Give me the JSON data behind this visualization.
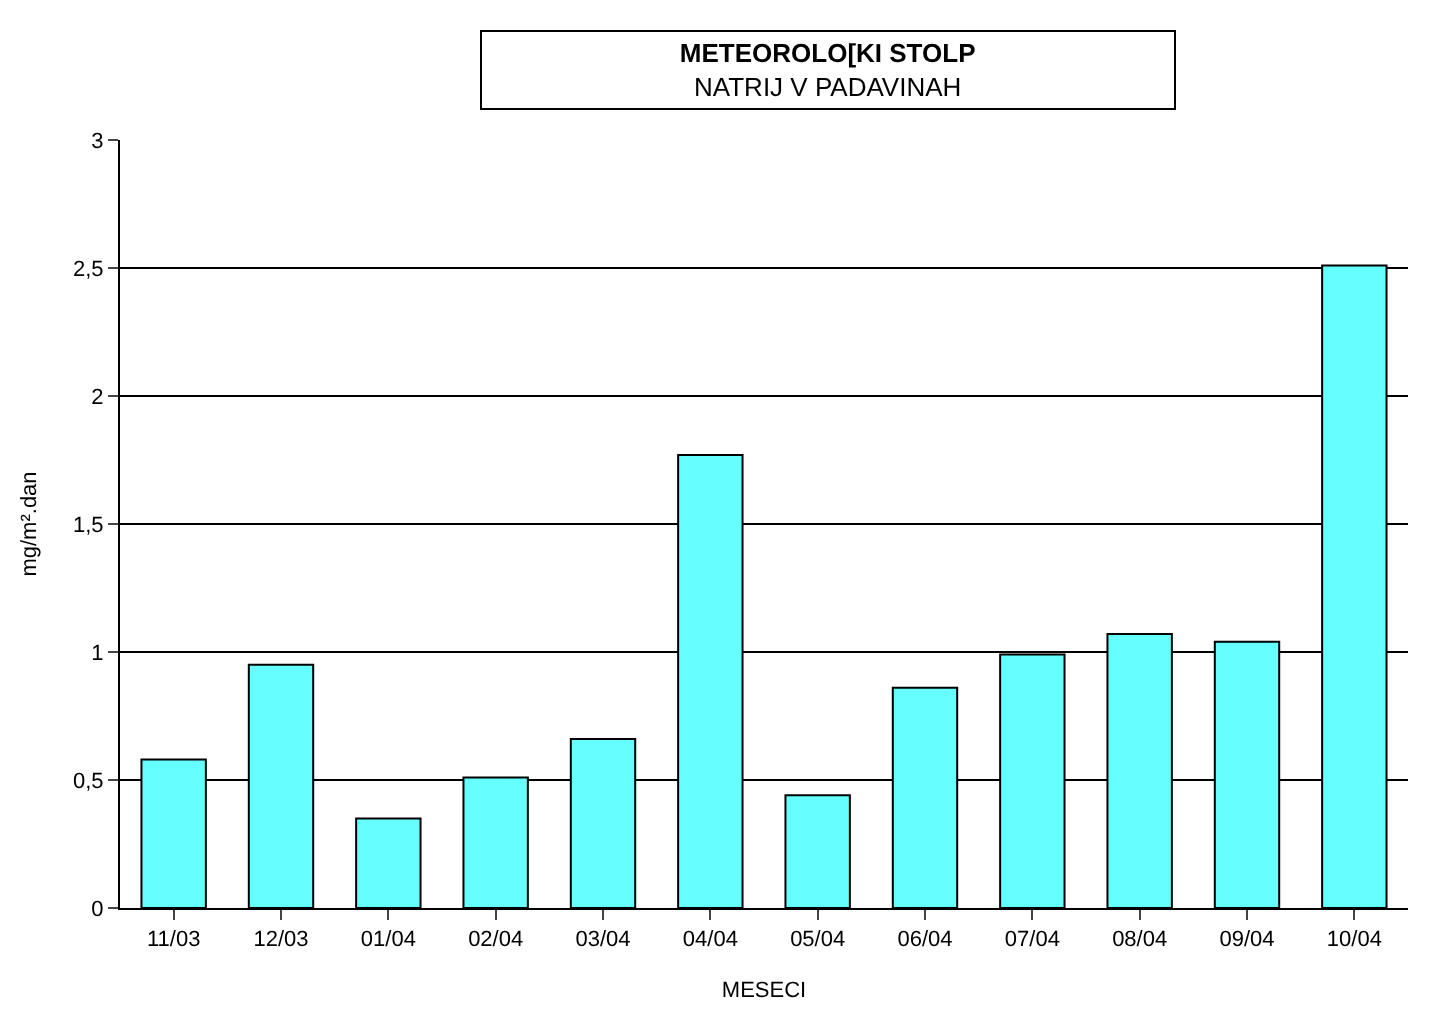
{
  "chart_data": {
    "type": "bar",
    "title": "METEOROLO[KI STOLP",
    "subtitle": "NATRIJ V PADAVINAH",
    "xlabel": "MESECI",
    "ylabel": "mg/m².dan",
    "categories": [
      "11/03",
      "12/03",
      "01/04",
      "02/04",
      "03/04",
      "04/04",
      "05/04",
      "06/04",
      "07/04",
      "08/04",
      "09/04",
      "10/04"
    ],
    "values": [
      0.58,
      0.95,
      0.35,
      0.51,
      0.66,
      1.77,
      0.44,
      0.86,
      0.99,
      1.07,
      1.04,
      2.51
    ],
    "color": "#66ffff",
    "ylim": [
      0,
      3
    ],
    "yticks": [
      0,
      {
        "value": 0.5,
        "label": "0,5"
      },
      1,
      {
        "value": 1.5,
        "label": "1,5"
      },
      2,
      {
        "value": 2.5,
        "label": "2,5"
      },
      3
    ],
    "grid": "y",
    "legend": false
  }
}
